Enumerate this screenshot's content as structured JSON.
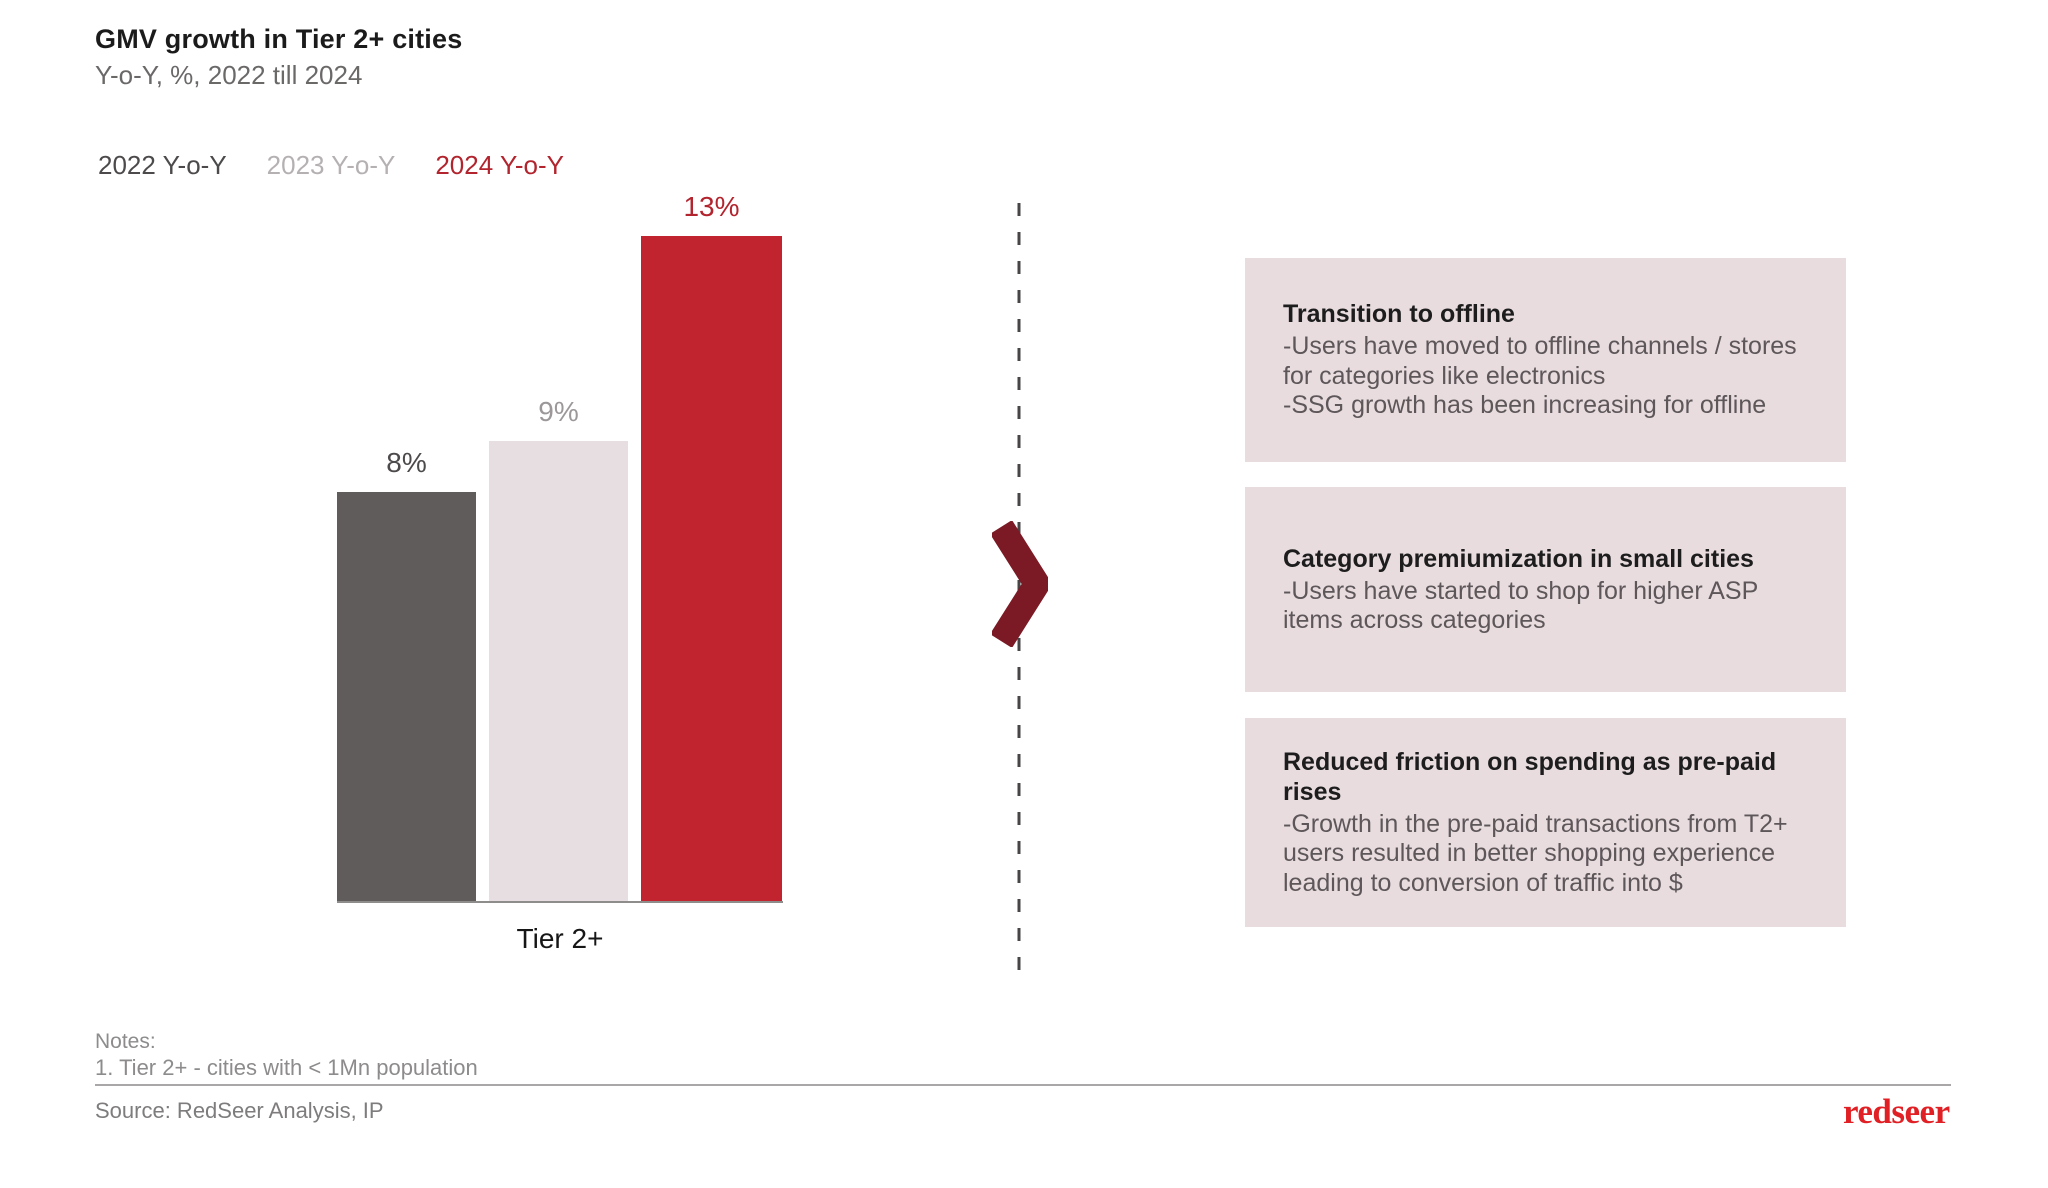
{
  "slide": {
    "title": "GMV growth in Tier 2+ cities",
    "subtitle": "Y-o-Y, %, 2022 till 2024",
    "notes_label": "Notes:",
    "note_1": "1. Tier 2+ - cities with < 1Mn population",
    "source": "Source: RedSeer Analysis, IP",
    "logo_text": "redseer"
  },
  "legend": [
    {
      "label": "2022 Y-o-Y",
      "color": "#4d4a4b"
    },
    {
      "label": "2023 Y-o-Y",
      "color": "#b5b1b2"
    },
    {
      "label": "2024 Y-o-Y",
      "color": "#b2242e"
    }
  ],
  "chart_data": {
    "type": "bar",
    "title": "GMV growth in Tier 2+ cities",
    "subtitle": "Y-o-Y, %, 2022 till 2024",
    "categories": [
      "Tier 2+"
    ],
    "series": [
      {
        "name": "2022 Y-o-Y",
        "values": [
          8
        ],
        "color": "#605c5b",
        "label": "8%",
        "label_color": "#4d4a4b"
      },
      {
        "name": "2023 Y-o-Y",
        "values": [
          9
        ],
        "color": "#e6dee0",
        "label": "9%",
        "label_color": "#9c9899"
      },
      {
        "name": "2024 Y-o-Y",
        "values": [
          13
        ],
        "color": "#c1242e",
        "label": "13%",
        "label_color": "#b2242e"
      }
    ],
    "unit": "%",
    "ylim": [
      0,
      13.7
    ],
    "grid": false,
    "axes_visible": "x-baseline-only",
    "legend_position": "top-left",
    "xlabel": "",
    "ylabel": ""
  },
  "insights": [
    {
      "heading": "Transition to offline",
      "bullets": [
        "-Users have moved to offline channels / stores for categories like electronics",
        "-SSG growth has been increasing for offline"
      ]
    },
    {
      "heading": "Category premiumization in small cities",
      "bullets": [
        "-Users have started to shop for higher ASP items across categories"
      ]
    },
    {
      "heading": "Reduced friction on spending as pre-paid rises",
      "bullets": [
        "-Growth in the pre-paid transactions from T2+ users resulted in better shopping experience leading to conversion of traffic into $"
      ]
    }
  ],
  "colors": {
    "background": "#ffffff",
    "card_background": "#e8dcdf",
    "chevron": "#7b1a24",
    "dashed_line": "#474545",
    "axis_line": "#8f8c8c",
    "logo_red": "#e02024"
  }
}
